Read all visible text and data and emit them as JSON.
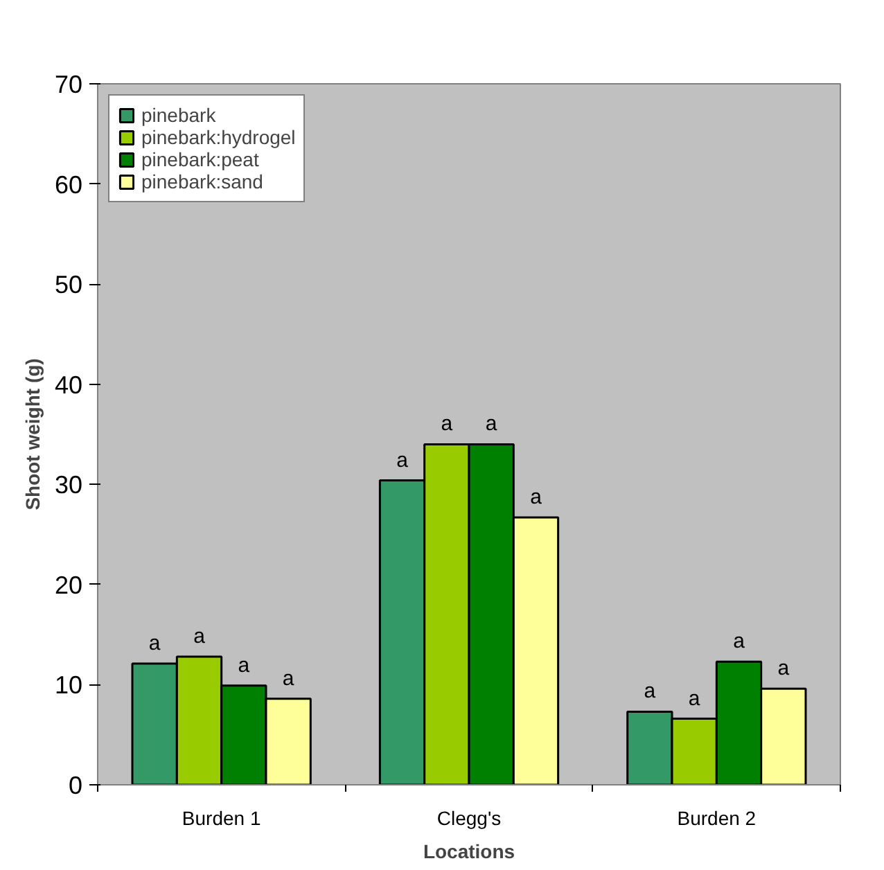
{
  "chart_data": {
    "type": "bar",
    "xlabel": "Locations",
    "ylabel": "Shoot weight (g)",
    "categories": [
      "Burden 1",
      "Clegg's",
      "Burden 2"
    ],
    "series": [
      {
        "name": "pinebark",
        "color": "#339966",
        "values": [
          12.1,
          30.4,
          7.3
        ]
      },
      {
        "name": "pinebark:hydrogel",
        "color": "#99cc00",
        "values": [
          12.8,
          34.0,
          6.6
        ]
      },
      {
        "name": "pinebark:peat",
        "color": "#008000",
        "values": [
          9.9,
          34.0,
          12.3
        ]
      },
      {
        "name": "pinebark:sand",
        "color": "#ffff99",
        "values": [
          8.6,
          26.7,
          9.6
        ]
      }
    ],
    "annotations": [
      "a",
      "a",
      "a",
      "a",
      "a",
      "a",
      "a",
      "a",
      "a",
      "a",
      "a",
      "a"
    ],
    "ylim": [
      0,
      70
    ],
    "yticks": [
      0,
      10,
      20,
      30,
      40,
      50,
      60,
      70
    ],
    "grid": false,
    "legend": "top left"
  }
}
